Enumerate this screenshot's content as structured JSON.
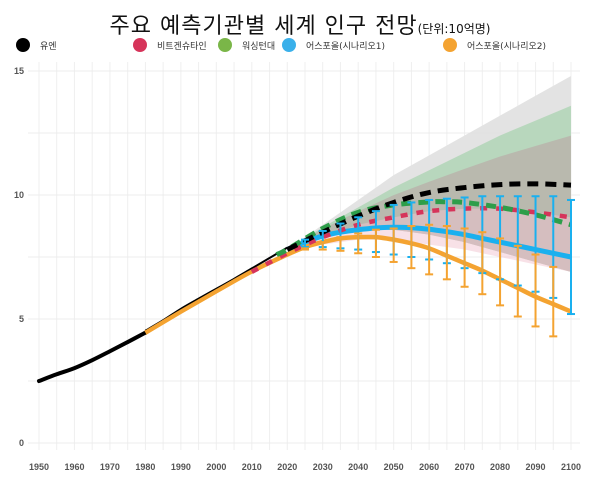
{
  "title": {
    "main": "주요 예측기관별 세계 인구 전망",
    "unit": "(단위:10억명)"
  },
  "legend": [
    {
      "key": "un",
      "label": "유엔",
      "color": "#000000"
    },
    {
      "key": "wittgenstein",
      "label": "비트겐슈타인",
      "color": "#d6345a"
    },
    {
      "key": "ihme",
      "label": "워싱턴대",
      "color": "#7ab648"
    },
    {
      "key": "e4a1",
      "label": "어스포올(시나리오1)",
      "color": "#3ab0ea"
    },
    {
      "key": "e4a2",
      "label": "어스포올(시나리오2)",
      "color": "#f4a331"
    }
  ],
  "chart_data": {
    "type": "line",
    "title": "주요 예측기관별 세계 인구 전망(단위:10억명)",
    "xlabel": "",
    "ylabel": "",
    "xlim": [
      1950,
      2100
    ],
    "ylim": [
      0,
      15
    ],
    "x_ticks": [
      1950,
      1960,
      1970,
      1980,
      1990,
      2000,
      2010,
      2020,
      2030,
      2040,
      2050,
      2060,
      2070,
      2080,
      2090,
      2100
    ],
    "y_ticks": [
      0,
      5,
      10,
      15
    ],
    "grid": true,
    "legend_position": "top",
    "series": [
      {
        "name": "유엔",
        "key": "un",
        "color": "#000000",
        "historical": {
          "x": [
            1950,
            1955,
            1960,
            1965,
            1970,
            1975,
            1980,
            1985,
            1990,
            1995,
            2000,
            2005,
            2010,
            2015,
            2020
          ],
          "y": [
            2.5,
            2.77,
            3.02,
            3.34,
            3.7,
            4.07,
            4.45,
            4.87,
            5.33,
            5.74,
            6.14,
            6.54,
            6.96,
            7.38,
            7.8
          ]
        },
        "projection": {
          "style": "dashed",
          "x": [
            2020,
            2030,
            2040,
            2050,
            2060,
            2070,
            2080,
            2090,
            2100
          ],
          "y": [
            7.8,
            8.5,
            9.15,
            9.7,
            10.1,
            10.3,
            10.42,
            10.45,
            10.4
          ]
        },
        "band": {
          "color": "#dcdcdc",
          "x": [
            2020,
            2030,
            2040,
            2050,
            2060,
            2070,
            2080,
            2090,
            2100
          ],
          "lower": [
            7.8,
            8.3,
            8.6,
            8.6,
            8.4,
            8.1,
            7.7,
            7.3,
            6.9
          ],
          "upper": [
            7.8,
            8.8,
            9.8,
            10.8,
            11.6,
            12.4,
            13.2,
            14.0,
            14.8
          ]
        }
      },
      {
        "name": "비트겐슈타인",
        "key": "wittgenstein",
        "color": "#d6345a",
        "projection": {
          "style": "dotted",
          "x": [
            2010,
            2020,
            2030,
            2040,
            2050,
            2060,
            2070,
            2080,
            2090,
            2100
          ],
          "y": [
            6.9,
            7.65,
            8.3,
            8.8,
            9.1,
            9.35,
            9.45,
            9.45,
            9.3,
            9.1
          ]
        },
        "band": {
          "color": "#f2c4cf",
          "x": [
            2020,
            2030,
            2040,
            2050,
            2060,
            2070,
            2080,
            2090,
            2100
          ],
          "lower": [
            7.65,
            8.0,
            8.2,
            8.2,
            8.0,
            7.8,
            7.5,
            7.2,
            6.9
          ],
          "upper": [
            7.65,
            8.3,
            8.8,
            9.1,
            9.35,
            9.45,
            9.45,
            9.3,
            9.1
          ]
        }
      },
      {
        "name": "워싱턴대",
        "key": "ihme",
        "color": "#2e9e4a",
        "projection": {
          "style": "dashed",
          "x": [
            2017,
            2020,
            2030,
            2040,
            2050,
            2060,
            2064,
            2070,
            2080,
            2090,
            2100
          ],
          "y": [
            7.6,
            7.8,
            8.65,
            9.3,
            9.6,
            9.72,
            9.73,
            9.7,
            9.5,
            9.2,
            8.8
          ]
        },
        "band": {
          "color": "#9fcfa8",
          "x": [
            2020,
            2030,
            2040,
            2050,
            2060,
            2070,
            2080,
            2090,
            2100
          ],
          "lower": [
            7.8,
            8.3,
            8.6,
            8.6,
            8.4,
            8.1,
            7.7,
            7.3,
            6.9
          ],
          "upper": [
            7.8,
            8.7,
            9.5,
            10.3,
            11.0,
            11.7,
            12.4,
            13.0,
            13.6
          ]
        }
      },
      {
        "name": "어스포올(시나리오1)",
        "key": "e4a1",
        "color": "#1ab0ef",
        "projection": {
          "style": "solid",
          "x": [
            2020,
            2025,
            2030,
            2035,
            2040,
            2045,
            2050,
            2055,
            2060,
            2065,
            2070,
            2075,
            2080,
            2085,
            2090,
            2095,
            2100
          ],
          "y": [
            7.8,
            8.1,
            8.35,
            8.5,
            8.6,
            8.67,
            8.7,
            8.68,
            8.62,
            8.52,
            8.4,
            8.25,
            8.1,
            7.95,
            7.8,
            7.65,
            7.5
          ]
        },
        "error_bars": {
          "x": [
            2025,
            2030,
            2035,
            2040,
            2045,
            2050,
            2055,
            2060,
            2065,
            2070,
            2075,
            2080,
            2085,
            2090,
            2095,
            2100
          ],
          "lower": [
            7.9,
            7.9,
            7.85,
            7.8,
            7.7,
            7.6,
            7.5,
            7.4,
            7.25,
            7.05,
            6.85,
            6.6,
            6.35,
            6.1,
            5.85,
            5.2
          ],
          "upper": [
            8.2,
            8.55,
            8.85,
            9.1,
            9.35,
            9.6,
            9.7,
            9.8,
            9.85,
            9.9,
            9.95,
            9.95,
            9.95,
            9.95,
            9.95,
            9.8
          ]
        }
      },
      {
        "name": "어스포올(시나리오2)",
        "key": "e4a2",
        "color": "#f4a331",
        "historical": {
          "x": [
            1980,
            1990,
            2000,
            2010,
            2020
          ],
          "y": [
            4.45,
            5.3,
            6.12,
            6.92,
            7.6
          ]
        },
        "projection": {
          "style": "solid",
          "x": [
            2020,
            2025,
            2030,
            2035,
            2040,
            2045,
            2050,
            2055,
            2060,
            2065,
            2070,
            2075,
            2080,
            2085,
            2090,
            2095,
            2100
          ],
          "y": [
            7.6,
            7.9,
            8.1,
            8.25,
            8.3,
            8.3,
            8.2,
            8.05,
            7.85,
            7.55,
            7.25,
            6.95,
            6.6,
            6.25,
            5.9,
            5.6,
            5.3
          ],
          "note": "historical segment drawn solid from 1980"
        },
        "error_bars": {
          "x": [
            2025,
            2030,
            2035,
            2040,
            2045,
            2050,
            2055,
            2060,
            2065,
            2070,
            2075,
            2080,
            2085,
            2090,
            2095
          ],
          "lower": [
            7.8,
            7.8,
            7.75,
            7.65,
            7.5,
            7.3,
            7.05,
            6.8,
            6.6,
            6.3,
            6.0,
            5.55,
            5.1,
            4.7,
            4.3
          ],
          "upper": [
            7.85,
            8.1,
            8.3,
            8.45,
            8.6,
            8.65,
            8.75,
            8.8,
            8.75,
            8.65,
            8.5,
            8.25,
            7.95,
            7.6,
            7.1
          ]
        }
      }
    ]
  }
}
